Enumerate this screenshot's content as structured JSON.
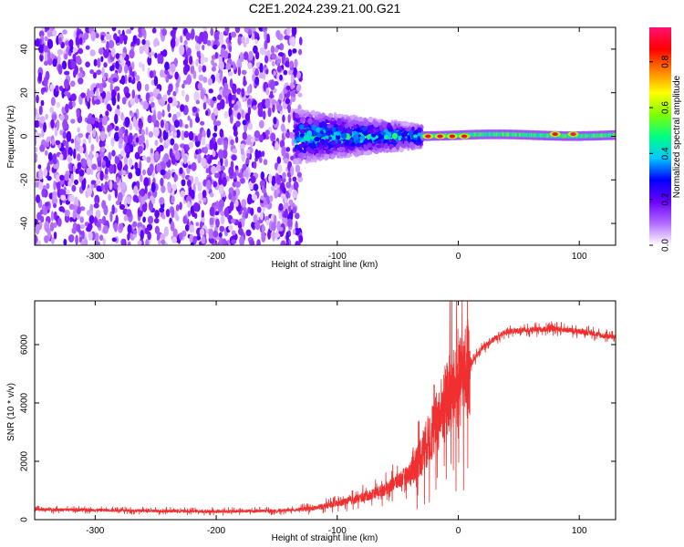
{
  "title": "C2E1.2024.239.21.00.G21",
  "colors": {
    "snr_line": "#f03030",
    "scatter_purple": "#6a1fe0",
    "colormap": [
      "#ffffff",
      "#b36cff",
      "#6a00ff",
      "#0000ff",
      "#00c8ff",
      "#00ff80",
      "#80ff00",
      "#ffff00",
      "#ff8000",
      "#ff0000",
      "#ff1070"
    ]
  },
  "chart_data": [
    {
      "type": "heatmap",
      "title": "",
      "xlabel": "Height of straight line (km)",
      "ylabel": "Frequency (Hz)",
      "xlim": [
        -350,
        130
      ],
      "ylim": [
        -50,
        50
      ],
      "xticks": [
        "-300",
        "-200",
        "-100",
        "0",
        "100"
      ],
      "yticks": [
        "-40",
        "-20",
        "0",
        "20",
        "40"
      ],
      "colorbar": {
        "label": "Normalized spectral amplitude",
        "range": [
          0,
          0.95
        ],
        "ticks": [
          "0.0",
          "0.2",
          "0.4",
          "0.6",
          "0.8"
        ]
      },
      "regions": [
        {
          "x_range": [
            -350,
            -130
          ],
          "freq_range": [
            -50,
            50
          ],
          "amplitude": 0.1,
          "pattern": "scattered noise"
        },
        {
          "x_range": [
            -135,
            -30
          ],
          "freq_range": [
            -12,
            12
          ],
          "amplitude": 0.3,
          "pattern": "converging band"
        },
        {
          "x_range": [
            -30,
            130
          ],
          "freq_range": [
            -2,
            2
          ],
          "amplitude": 0.5,
          "pattern": "narrow tone near 0 Hz"
        }
      ],
      "peaks": [
        {
          "x": -25,
          "freq": 0,
          "amplitude": 0.9
        },
        {
          "x": -15,
          "freq": 0,
          "amplitude": 0.9
        },
        {
          "x": -5,
          "freq": 0,
          "amplitude": 0.85
        },
        {
          "x": 5,
          "freq": 0,
          "amplitude": 0.9
        },
        {
          "x": 80,
          "freq": 1,
          "amplitude": 0.9
        },
        {
          "x": 95,
          "freq": 1,
          "amplitude": 0.95
        }
      ]
    },
    {
      "type": "line",
      "title": "",
      "xlabel": "Height of straight line (km)",
      "ylabel": "SNR (10 * v/v)",
      "xlim": [
        -350,
        130
      ],
      "ylim": [
        0,
        7500
      ],
      "xticks": [
        "-300",
        "-200",
        "-100",
        "0",
        "100"
      ],
      "yticks": [
        "0",
        "2000",
        "4000",
        "6000"
      ],
      "series": [
        {
          "x": [
            -350,
            -300,
            -250,
            -200,
            -150,
            -120,
            -100,
            -80,
            -60,
            -40,
            -30,
            -20,
            -10,
            0,
            10,
            20,
            30,
            40,
            60,
            80,
            100,
            110,
            120,
            130
          ],
          "values": [
            350,
            330,
            300,
            280,
            300,
            380,
            550,
            750,
            1050,
            1600,
            2300,
            3100,
            4100,
            4600,
            5300,
            5900,
            6200,
            6450,
            6500,
            6550,
            6450,
            6400,
            6300,
            6250
          ]
        }
      ]
    }
  ]
}
